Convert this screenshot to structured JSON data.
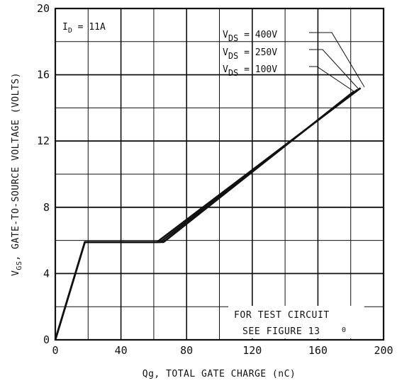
{
  "chart_data": {
    "type": "line",
    "title": "",
    "xlabel": "Qg, TOTAL GATE CHARGE (nC)",
    "ylabel": {
      "prefix": "V",
      "subscript": "GS",
      "rest": ", GATE-TO-SOURCE VOLTAGE (VOLTS)"
    },
    "xlim": [
      0,
      200
    ],
    "ylim": [
      0,
      20
    ],
    "xticks": [
      "0",
      "40",
      "80",
      "120",
      "160",
      "200"
    ],
    "yticks": [
      "0",
      "4",
      "8",
      "12",
      "16",
      "20"
    ],
    "grid": true,
    "condition": {
      "prefix": "I",
      "subscript": "D",
      "rest": " = 11A"
    },
    "series": [
      {
        "name": "V_DS = 400V",
        "label": {
          "prefix": "V",
          "subscript": "DS",
          "rest": " = 400V"
        },
        "x": [
          0,
          18,
          62,
          186
        ],
        "y": [
          0,
          5.9,
          5.9,
          15.2
        ]
      },
      {
        "name": "V_DS = 250V",
        "label": {
          "prefix": "V",
          "subscript": "DS",
          "rest": " = 250V"
        },
        "x": [
          0,
          18,
          64,
          184
        ],
        "y": [
          0,
          5.9,
          5.9,
          15.1
        ]
      },
      {
        "name": "V_DS = 100V",
        "label": {
          "prefix": "V",
          "subscript": "DS",
          "rest": " = 100V"
        },
        "x": [
          0,
          18,
          66,
          182
        ],
        "y": [
          0,
          5.9,
          5.9,
          15.0
        ]
      }
    ],
    "note": [
      "FOR TEST CIRCUIT",
      "SEE FIGURE 13"
    ],
    "stray_mark": "0"
  }
}
